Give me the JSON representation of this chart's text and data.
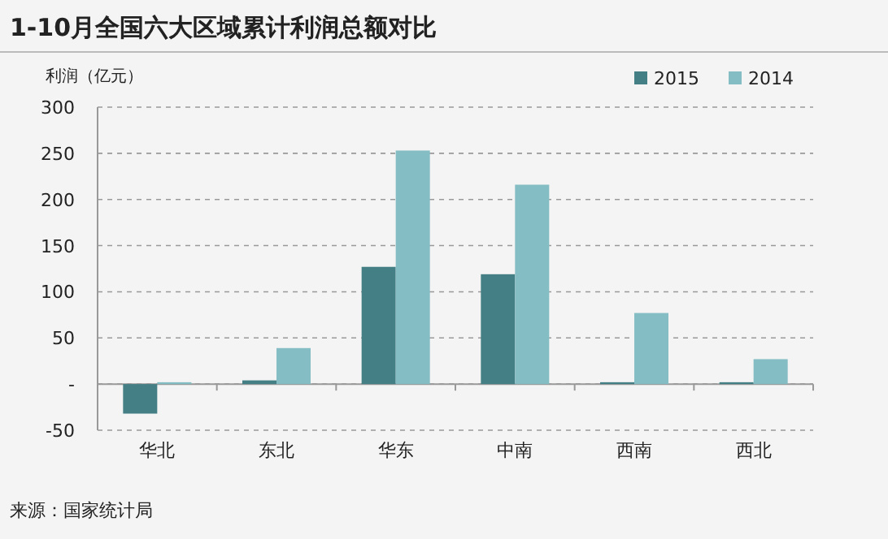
{
  "chart_data": {
    "type": "bar",
    "title": "1-10月全国六大区域累计利润总额对比",
    "ylabel": "利润（亿元）",
    "annotations": [
      "来源：国家统计局"
    ],
    "categories": [
      "华北",
      "东北",
      "华东",
      "中南",
      "西南",
      "西北"
    ],
    "series": [
      {
        "name": "2015",
        "color": "#437f84",
        "values": [
          -32,
          4,
          127,
          119,
          2,
          2
        ]
      },
      {
        "name": "2014",
        "color": "#84bdc3",
        "values": [
          2,
          39,
          253,
          216,
          77,
          27
        ]
      }
    ],
    "ylim": [
      -50,
      300
    ],
    "yticks": [
      -50,
      {
        "value": 0,
        "label": "-"
      },
      50,
      100,
      150,
      200,
      250,
      300
    ],
    "grid": "y",
    "legend": "top right"
  }
}
